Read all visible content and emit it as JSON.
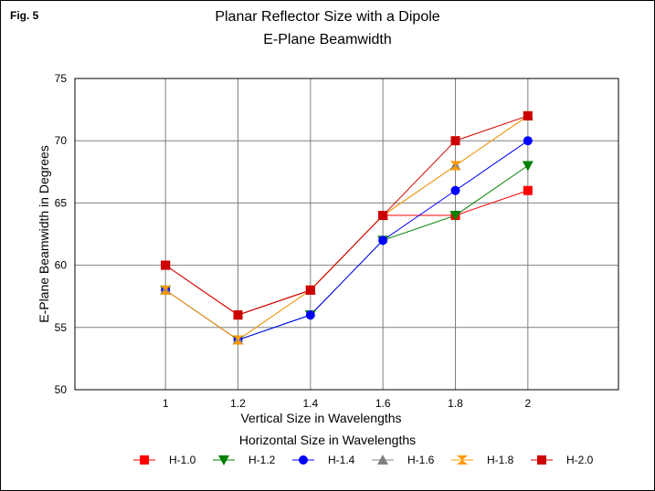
{
  "figure_label": "Fig. 5",
  "chart_data": {
    "type": "line",
    "title": "Planar Reflector Size with a Dipole",
    "subtitle": "E-Plane Beamwidth",
    "xlabel": "Vertical Size in Wavelengths",
    "ylabel": "E-Plane Beamwidth in Degrees",
    "legend_title": "Horizontal Size in Wavelengths",
    "legend_position": "bottom",
    "grid": true,
    "x": [
      1,
      1.2,
      1.4,
      1.6,
      1.8,
      2
    ],
    "x_tick_labels": [
      "1",
      "1.2",
      "1.4",
      "1.6",
      "1.8",
      "2"
    ],
    "ylim": [
      50,
      75
    ],
    "y_ticks": [
      50,
      55,
      60,
      65,
      70,
      75
    ],
    "series": [
      {
        "name": "H-1.0",
        "color": "#ff0000",
        "marker": "square",
        "values": [
          60,
          56,
          58,
          64,
          64,
          66
        ]
      },
      {
        "name": "H-1.2",
        "color": "#008000",
        "marker": "triangle-down",
        "values": [
          58,
          54,
          56,
          62,
          64,
          68
        ]
      },
      {
        "name": "H-1.4",
        "color": "#0000ff",
        "marker": "circle",
        "values": [
          58,
          54,
          56,
          62,
          66,
          70
        ]
      },
      {
        "name": "H-1.6",
        "color": "#808080",
        "marker": "triangle-up",
        "values": [
          58,
          54,
          58,
          64,
          68,
          72
        ]
      },
      {
        "name": "H-1.8",
        "color": "#ff9900",
        "marker": "hourglass",
        "values": [
          58,
          54,
          58,
          64,
          68,
          72
        ]
      },
      {
        "name": "H-2.0",
        "color": "#cc0000",
        "marker": "square",
        "values": [
          60,
          56,
          58,
          64,
          70,
          72
        ]
      }
    ]
  }
}
